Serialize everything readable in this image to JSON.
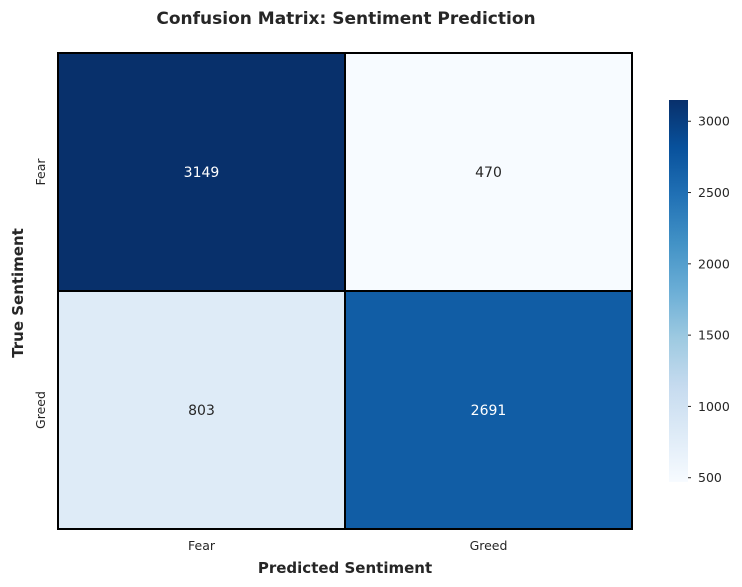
{
  "chart_data": {
    "type": "heatmap",
    "title": "Confusion Matrix: Sentiment Prediction",
    "xlabel": "Predicted Sentiment",
    "ylabel": "True Sentiment",
    "x_categories": [
      "Fear",
      "Greed"
    ],
    "y_categories": [
      "Fear",
      "Greed"
    ],
    "values": [
      [
        3149,
        470
      ],
      [
        803,
        2691
      ]
    ],
    "colormap": "Blues",
    "colorbar": {
      "range": [
        470,
        3149
      ],
      "ticks": [
        500,
        1000,
        1500,
        2000,
        2500,
        3000
      ]
    },
    "colors": {
      "cmap_low": "#f7fbff",
      "cmap_high": "#08306b",
      "cell_border": "#000000",
      "text_dark": "#262626",
      "text_light": "#ffffff"
    }
  }
}
